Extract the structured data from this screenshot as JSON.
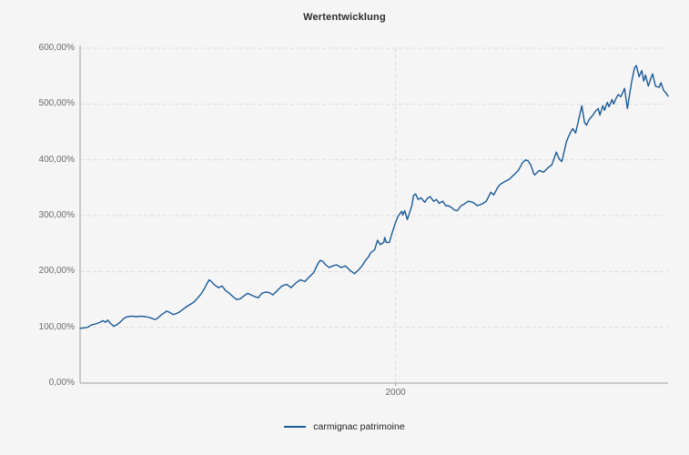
{
  "colors": {
    "background": "#f5f5f5",
    "axis": "#a0a0a0",
    "grid": "#dcdcdc",
    "tick_text": "#6b6b6b",
    "title_text": "#2b2b2b",
    "line": "#1a5a96"
  },
  "chart_data": {
    "type": "line",
    "title": "Wertentwicklung",
    "xlabel": "",
    "ylabel": "",
    "xlim": [
      1988.98,
      2009.52
    ],
    "ylim": [
      0,
      600
    ],
    "grid": "dashed",
    "legend_position": "bottom-center",
    "x_ticks": [
      {
        "value": 2000,
        "label": "2000"
      }
    ],
    "y_ticks": [
      {
        "value": 600,
        "label": "600,00%"
      },
      {
        "value": 500,
        "label": "500,00%"
      },
      {
        "value": 400,
        "label": "400,00%"
      },
      {
        "value": 300,
        "label": "300,00%"
      },
      {
        "value": 200,
        "label": "200,00%"
      },
      {
        "value": 100,
        "label": "100,00%"
      },
      {
        "value": 0,
        "label": "0,00%"
      }
    ],
    "series": [
      {
        "name": "carmignac patrimoine",
        "color": "#1a5a96",
        "unit": "%",
        "points": [
          [
            1988.98,
            98
          ],
          [
            1989.11,
            99
          ],
          [
            1989.24,
            100
          ],
          [
            1989.37,
            104
          ],
          [
            1989.52,
            106
          ],
          [
            1989.68,
            109
          ],
          [
            1989.78,
            112
          ],
          [
            1989.87,
            109
          ],
          [
            1989.94,
            113
          ],
          [
            1990.06,
            106
          ],
          [
            1990.16,
            102
          ],
          [
            1990.25,
            104
          ],
          [
            1990.38,
            109
          ],
          [
            1990.51,
            116
          ],
          [
            1990.63,
            119
          ],
          [
            1990.79,
            120
          ],
          [
            1990.95,
            119
          ],
          [
            1991.11,
            120
          ],
          [
            1991.27,
            119
          ],
          [
            1991.43,
            117
          ],
          [
            1991.59,
            114
          ],
          [
            1991.68,
            116
          ],
          [
            1991.81,
            122
          ],
          [
            1991.9,
            125
          ],
          [
            1992.0,
            129
          ],
          [
            1992.1,
            127
          ],
          [
            1992.22,
            123
          ],
          [
            1992.32,
            124
          ],
          [
            1992.44,
            127
          ],
          [
            1992.54,
            131
          ],
          [
            1992.7,
            137
          ],
          [
            1992.86,
            142
          ],
          [
            1992.95,
            145
          ],
          [
            1993.08,
            152
          ],
          [
            1993.21,
            160
          ],
          [
            1993.33,
            170
          ],
          [
            1993.43,
            180
          ],
          [
            1993.49,
            185
          ],
          [
            1993.59,
            181
          ],
          [
            1993.65,
            177
          ],
          [
            1993.81,
            171
          ],
          [
            1993.94,
            174
          ],
          [
            1994.06,
            166
          ],
          [
            1994.19,
            161
          ],
          [
            1994.32,
            155
          ],
          [
            1994.44,
            150
          ],
          [
            1994.57,
            151
          ],
          [
            1994.7,
            156
          ],
          [
            1994.83,
            161
          ],
          [
            1994.95,
            158
          ],
          [
            1995.08,
            155
          ],
          [
            1995.21,
            153
          ],
          [
            1995.33,
            161
          ],
          [
            1995.46,
            163
          ],
          [
            1995.59,
            162
          ],
          [
            1995.71,
            158
          ],
          [
            1995.87,
            166
          ],
          [
            1996.03,
            174
          ],
          [
            1996.19,
            177
          ],
          [
            1996.35,
            171
          ],
          [
            1996.51,
            179
          ],
          [
            1996.67,
            185
          ],
          [
            1996.83,
            182
          ],
          [
            1996.98,
            190
          ],
          [
            1997.14,
            198
          ],
          [
            1997.3,
            215
          ],
          [
            1997.37,
            220
          ],
          [
            1997.46,
            218
          ],
          [
            1997.56,
            212
          ],
          [
            1997.68,
            207
          ],
          [
            1997.81,
            210
          ],
          [
            1997.94,
            212
          ],
          [
            1998.1,
            207
          ],
          [
            1998.25,
            210
          ],
          [
            1998.41,
            202
          ],
          [
            1998.57,
            196
          ],
          [
            1998.73,
            204
          ],
          [
            1998.83,
            210
          ],
          [
            1998.95,
            220
          ],
          [
            1999.05,
            226
          ],
          [
            1999.14,
            234
          ],
          [
            1999.27,
            239
          ],
          [
            1999.37,
            256
          ],
          [
            1999.46,
            248
          ],
          [
            1999.59,
            252
          ],
          [
            1999.62,
            261
          ],
          [
            1999.68,
            252
          ],
          [
            1999.78,
            252
          ],
          [
            1999.9,
            272
          ],
          [
            2000.0,
            288
          ],
          [
            2000.1,
            300
          ],
          [
            2000.22,
            308
          ],
          [
            2000.25,
            301
          ],
          [
            2000.32,
            309
          ],
          [
            2000.41,
            293
          ],
          [
            2000.57,
            318
          ],
          [
            2000.63,
            336
          ],
          [
            2000.7,
            339
          ],
          [
            2000.79,
            329
          ],
          [
            2000.89,
            332
          ],
          [
            2001.02,
            324
          ],
          [
            2001.11,
            331
          ],
          [
            2001.21,
            334
          ],
          [
            2001.33,
            326
          ],
          [
            2001.43,
            329
          ],
          [
            2001.52,
            322
          ],
          [
            2001.65,
            326
          ],
          [
            2001.75,
            318
          ],
          [
            2001.84,
            318
          ],
          [
            2001.97,
            314
          ],
          [
            2002.06,
            310
          ],
          [
            2002.16,
            309
          ],
          [
            2002.29,
            318
          ],
          [
            2002.38,
            320
          ],
          [
            2002.54,
            326
          ],
          [
            2002.7,
            324
          ],
          [
            2002.86,
            318
          ],
          [
            2003.02,
            321
          ],
          [
            2003.17,
            326
          ],
          [
            2003.33,
            342
          ],
          [
            2003.43,
            337
          ],
          [
            2003.56,
            350
          ],
          [
            2003.65,
            356
          ],
          [
            2003.81,
            361
          ],
          [
            2003.97,
            365
          ],
          [
            2004.13,
            373
          ],
          [
            2004.29,
            381
          ],
          [
            2004.44,
            395
          ],
          [
            2004.54,
            400
          ],
          [
            2004.63,
            398
          ],
          [
            2004.73,
            390
          ],
          [
            2004.83,
            375
          ],
          [
            2004.86,
            373
          ],
          [
            2005.02,
            381
          ],
          [
            2005.17,
            378
          ],
          [
            2005.33,
            386
          ],
          [
            2005.46,
            391
          ],
          [
            2005.62,
            414
          ],
          [
            2005.71,
            402
          ],
          [
            2005.81,
            397
          ],
          [
            2005.97,
            432
          ],
          [
            2006.03,
            440
          ],
          [
            2006.13,
            451
          ],
          [
            2006.19,
            456
          ],
          [
            2006.29,
            448
          ],
          [
            2006.41,
            475
          ],
          [
            2006.51,
            497
          ],
          [
            2006.6,
            467
          ],
          [
            2006.67,
            462
          ],
          [
            2006.76,
            472
          ],
          [
            2006.89,
            480
          ],
          [
            2006.98,
            487
          ],
          [
            2007.08,
            492
          ],
          [
            2007.14,
            480
          ],
          [
            2007.24,
            497
          ],
          [
            2007.3,
            489
          ],
          [
            2007.4,
            503
          ],
          [
            2007.46,
            495
          ],
          [
            2007.56,
            508
          ],
          [
            2007.62,
            500
          ],
          [
            2007.71,
            511
          ],
          [
            2007.78,
            517
          ],
          [
            2007.87,
            513
          ],
          [
            2008.0,
            528
          ],
          [
            2008.1,
            492
          ],
          [
            2008.25,
            541
          ],
          [
            2008.35,
            565
          ],
          [
            2008.41,
            569
          ],
          [
            2008.51,
            549
          ],
          [
            2008.6,
            560
          ],
          [
            2008.67,
            541
          ],
          [
            2008.73,
            552
          ],
          [
            2008.83,
            532
          ],
          [
            2008.92,
            546
          ],
          [
            2008.98,
            554
          ],
          [
            2009.08,
            532
          ],
          [
            2009.21,
            530
          ],
          [
            2009.27,
            538
          ],
          [
            2009.37,
            524
          ],
          [
            2009.43,
            521
          ],
          [
            2009.52,
            514
          ]
        ]
      }
    ]
  }
}
